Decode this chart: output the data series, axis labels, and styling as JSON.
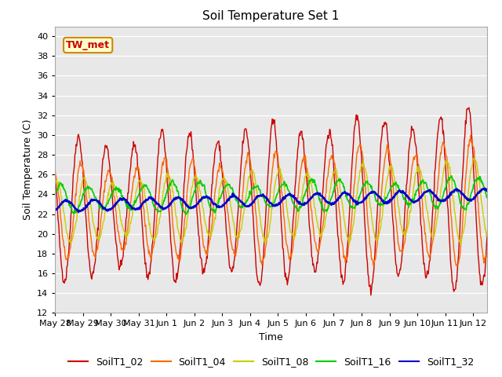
{
  "title": "Soil Temperature Set 1",
  "xlabel": "Time",
  "ylabel": "Soil Temperature (C)",
  "ylim": [
    12,
    41
  ],
  "yticks": [
    12,
    14,
    16,
    18,
    20,
    22,
    24,
    26,
    28,
    30,
    32,
    34,
    36,
    38,
    40
  ],
  "bg_color": "#e8e8e8",
  "annotation_text": "TW_met",
  "annotation_color": "#cc0000",
  "annotation_bg": "#ffffcc",
  "series_colors": {
    "SoilT1_02": "#cc0000",
    "SoilT1_04": "#ff6600",
    "SoilT1_08": "#cccc00",
    "SoilT1_16": "#00cc00",
    "SoilT1_32": "#0000cc"
  },
  "xlim": [
    0,
    15.5
  ],
  "xtick_labels": [
    "May 28",
    "May 29",
    "May 30",
    "May 31",
    "Jun 1",
    "Jun 2",
    "Jun 3",
    "Jun 4",
    "Jun 5",
    "Jun 6",
    "Jun 7",
    "Jun 8",
    "Jun 9",
    "Jun 10",
    "Jun 11",
    "Jun 12"
  ],
  "xtick_positions": [
    0,
    1,
    2,
    3,
    4,
    5,
    6,
    7,
    8,
    9,
    10,
    11,
    12,
    13,
    14,
    15
  ]
}
